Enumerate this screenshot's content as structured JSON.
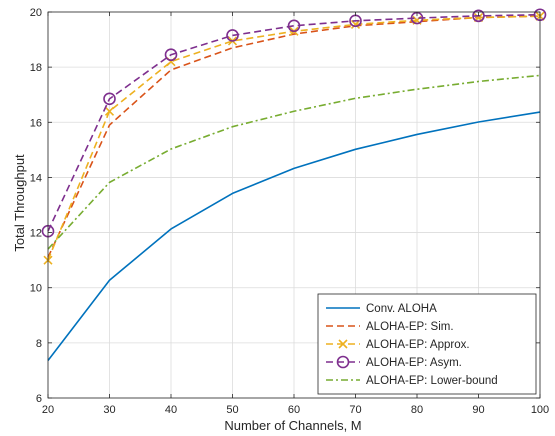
{
  "chart_data": {
    "type": "line",
    "xlabel": "Number of Channels, M",
    "ylabel": "Total Throughput",
    "xlim": [
      20,
      100
    ],
    "ylim": [
      6,
      20
    ],
    "x_ticks": [
      20,
      30,
      40,
      50,
      60,
      70,
      80,
      90,
      100
    ],
    "y_ticks": [
      6,
      8,
      10,
      12,
      14,
      16,
      18,
      20
    ],
    "grid": true,
    "legend_position": "bottom-right",
    "x": [
      20,
      30,
      40,
      50,
      60,
      70,
      80,
      90,
      100
    ],
    "series": [
      {
        "name": "Conv. ALOHA",
        "color": "#0072BD",
        "style": "solid",
        "marker": "none",
        "values": [
          7.36,
          10.27,
          12.13,
          13.42,
          14.33,
          15.02,
          15.56,
          16.01,
          16.37
        ]
      },
      {
        "name": "ALOHA-EP: Sim.",
        "color": "#D95319",
        "style": "dashed",
        "marker": "none",
        "values": [
          11.1,
          15.9,
          17.9,
          18.7,
          19.2,
          19.5,
          19.65,
          19.8,
          19.85
        ]
      },
      {
        "name": "ALOHA-EP: Approx.",
        "color": "#EDB120",
        "style": "dashed",
        "marker": "x",
        "values": [
          11.0,
          16.4,
          18.2,
          18.95,
          19.3,
          19.55,
          19.7,
          19.8,
          19.85
        ]
      },
      {
        "name": "ALOHA-EP: Asym.",
        "color": "#7E2F8E",
        "style": "dashed",
        "marker": "circle",
        "values": [
          12.05,
          16.85,
          18.45,
          19.15,
          19.5,
          19.68,
          19.78,
          19.86,
          19.9
        ]
      },
      {
        "name": "ALOHA-EP: Lower-bound",
        "color": "#77AC30",
        "style": "dashdot",
        "marker": "none",
        "values": [
          11.4,
          13.82,
          15.03,
          15.84,
          16.4,
          16.87,
          17.2,
          17.48,
          17.7
        ]
      }
    ]
  }
}
